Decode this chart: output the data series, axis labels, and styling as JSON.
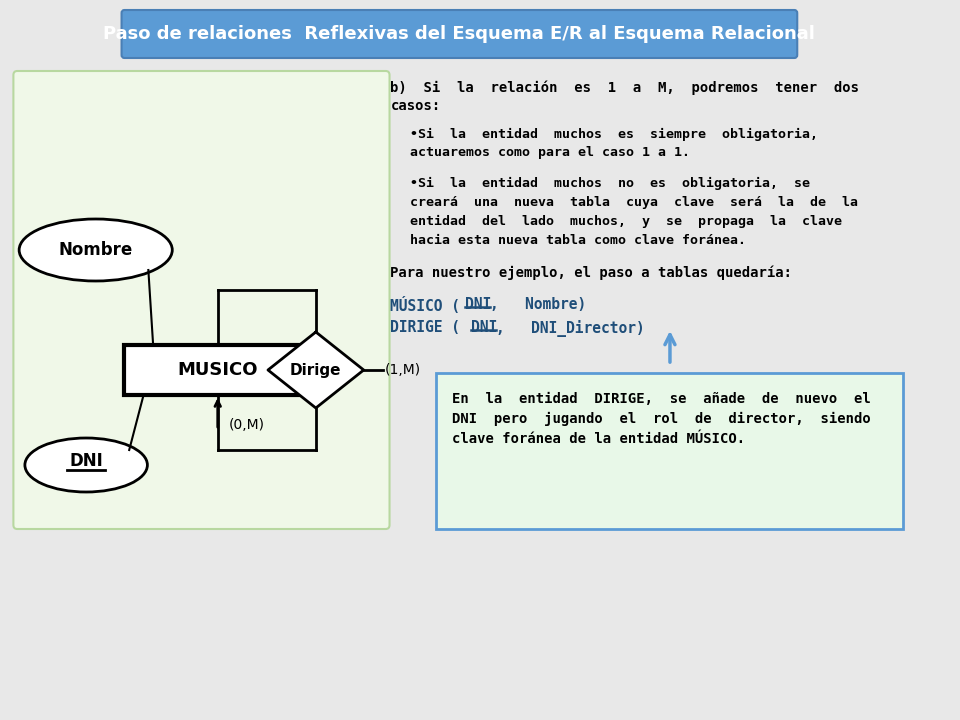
{
  "title": "Paso de relaciones  Reflexivas del Esquema E/R al Esquema Relacional",
  "title_bg": "#5b9bd5",
  "title_fg": "white",
  "bg_color": "#e8e8e8",
  "diagram_bg": "#f0f8e8",
  "text_b_line1": "b)  Si  la  relación  es  1  a  M,  podremos  tener  dos",
  "text_b_line2": "casos:",
  "bullet1_line1": "•Si  la  entidad  muchos  es  siempre  obligatoria,",
  "bullet1_line2": "actuaremos como para el caso 1 a 1.",
  "bullet2_line1": "•Si  la  entidad  muchos  no  es  obligatoria,  se",
  "bullet2_line2": "creará  una  nueva  tabla  cuya  clave  será  la  de  la",
  "bullet2_line3": "entidad  del  lado  muchos,  y  se  propaga  la  clave",
  "bullet2_line4": "hacia esta nueva tabla como clave foránea.",
  "para_line": "Para nuestro ejemplo, el paso a tablas quedaría:",
  "table1_prefix": "MÚSICO (",
  "table1_key": "DNI",
  "table1_rest": ",   Nombre)",
  "table2_prefix": "DIRIGE (",
  "table2_key": "DNI",
  "table2_rest": ",   DNI_Director)",
  "note_line1": "En  la  entidad  DIRIGE,  se  añade  de  nuevo  el",
  "note_line2": "DNI  pero  jugando  el  rol  de  director,  siendo",
  "note_line3": "clave foránea de la entidad MÚSICO.",
  "note_bg": "#e8f8e8",
  "note_border": "#5b9bd5",
  "arrow_color": "#5b9bd5"
}
